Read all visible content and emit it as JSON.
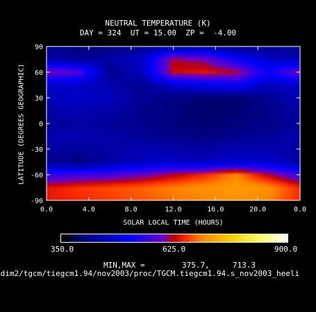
{
  "chart_data": {
    "type": "heatmap",
    "title": "NEUTRAL TEMPERATURE (K)",
    "subtitle": "DAY = 324  UT = 15.00  ZP =  -4.00",
    "xlabel": "SOLAR LOCAL TIME (HOURS)",
    "ylabel": "LATITUDE (DEGREES GEOGRAPHIC)",
    "xlim": [
      0,
      24
    ],
    "ylim": [
      -90,
      90
    ],
    "x_tick_labels": [
      "0.0",
      "4.0",
      "8.0",
      "12.0",
      "16.0",
      "20.0",
      "0.0"
    ],
    "y_tick_labels": [
      "90",
      "60",
      "30",
      "0",
      "-30",
      "-60",
      "-90"
    ],
    "y_tick_values": [
      90,
      60,
      30,
      0,
      -30,
      -60,
      -90
    ],
    "colorbar": {
      "min_label": "350.0",
      "mid_label": "625.0",
      "max_label": "900.0",
      "range": [
        350,
        900
      ]
    },
    "min": 375.7,
    "max": 713.3,
    "grid_lon": [
      0,
      3,
      6,
      9,
      12,
      15,
      18,
      21,
      24
    ],
    "grid_lat": [
      -90,
      -75,
      -60,
      -45,
      -30,
      -15,
      0,
      15,
      30,
      45,
      60,
      75,
      90
    ],
    "values": [
      [
        640,
        650,
        660,
        670,
        680,
        690,
        700,
        690,
        650
      ],
      [
        640,
        655,
        665,
        675,
        690,
        700,
        712,
        700,
        650
      ],
      [
        550,
        560,
        570,
        590,
        620,
        650,
        690,
        620,
        560
      ],
      [
        430,
        410,
        440,
        460,
        470,
        460,
        470,
        470,
        440
      ],
      [
        440,
        430,
        440,
        450,
        440,
        440,
        450,
        450,
        440
      ],
      [
        450,
        450,
        440,
        430,
        420,
        410,
        420,
        430,
        450
      ],
      [
        430,
        440,
        430,
        420,
        410,
        400,
        410,
        420,
        430
      ],
      [
        440,
        450,
        440,
        420,
        410,
        400,
        400,
        420,
        440
      ],
      [
        460,
        470,
        460,
        430,
        410,
        400,
        400,
        420,
        460
      ],
      [
        470,
        470,
        450,
        420,
        480,
        500,
        520,
        460,
        470
      ],
      [
        600,
        580,
        420,
        460,
        630,
        640,
        620,
        520,
        600
      ],
      [
        450,
        430,
        440,
        470,
        620,
        600,
        520,
        470,
        450
      ],
      [
        420,
        410,
        410,
        420,
        430,
        430,
        420,
        420,
        420
      ]
    ],
    "minmax_label": "MIN,MAX =",
    "minmax_values": "375.7,     713.3",
    "source_path": "/dim2/tgcm/tiegcm1.94/nov2003/proc/TGCM.tiegcm1.94.s_nov2003_heeli"
  }
}
